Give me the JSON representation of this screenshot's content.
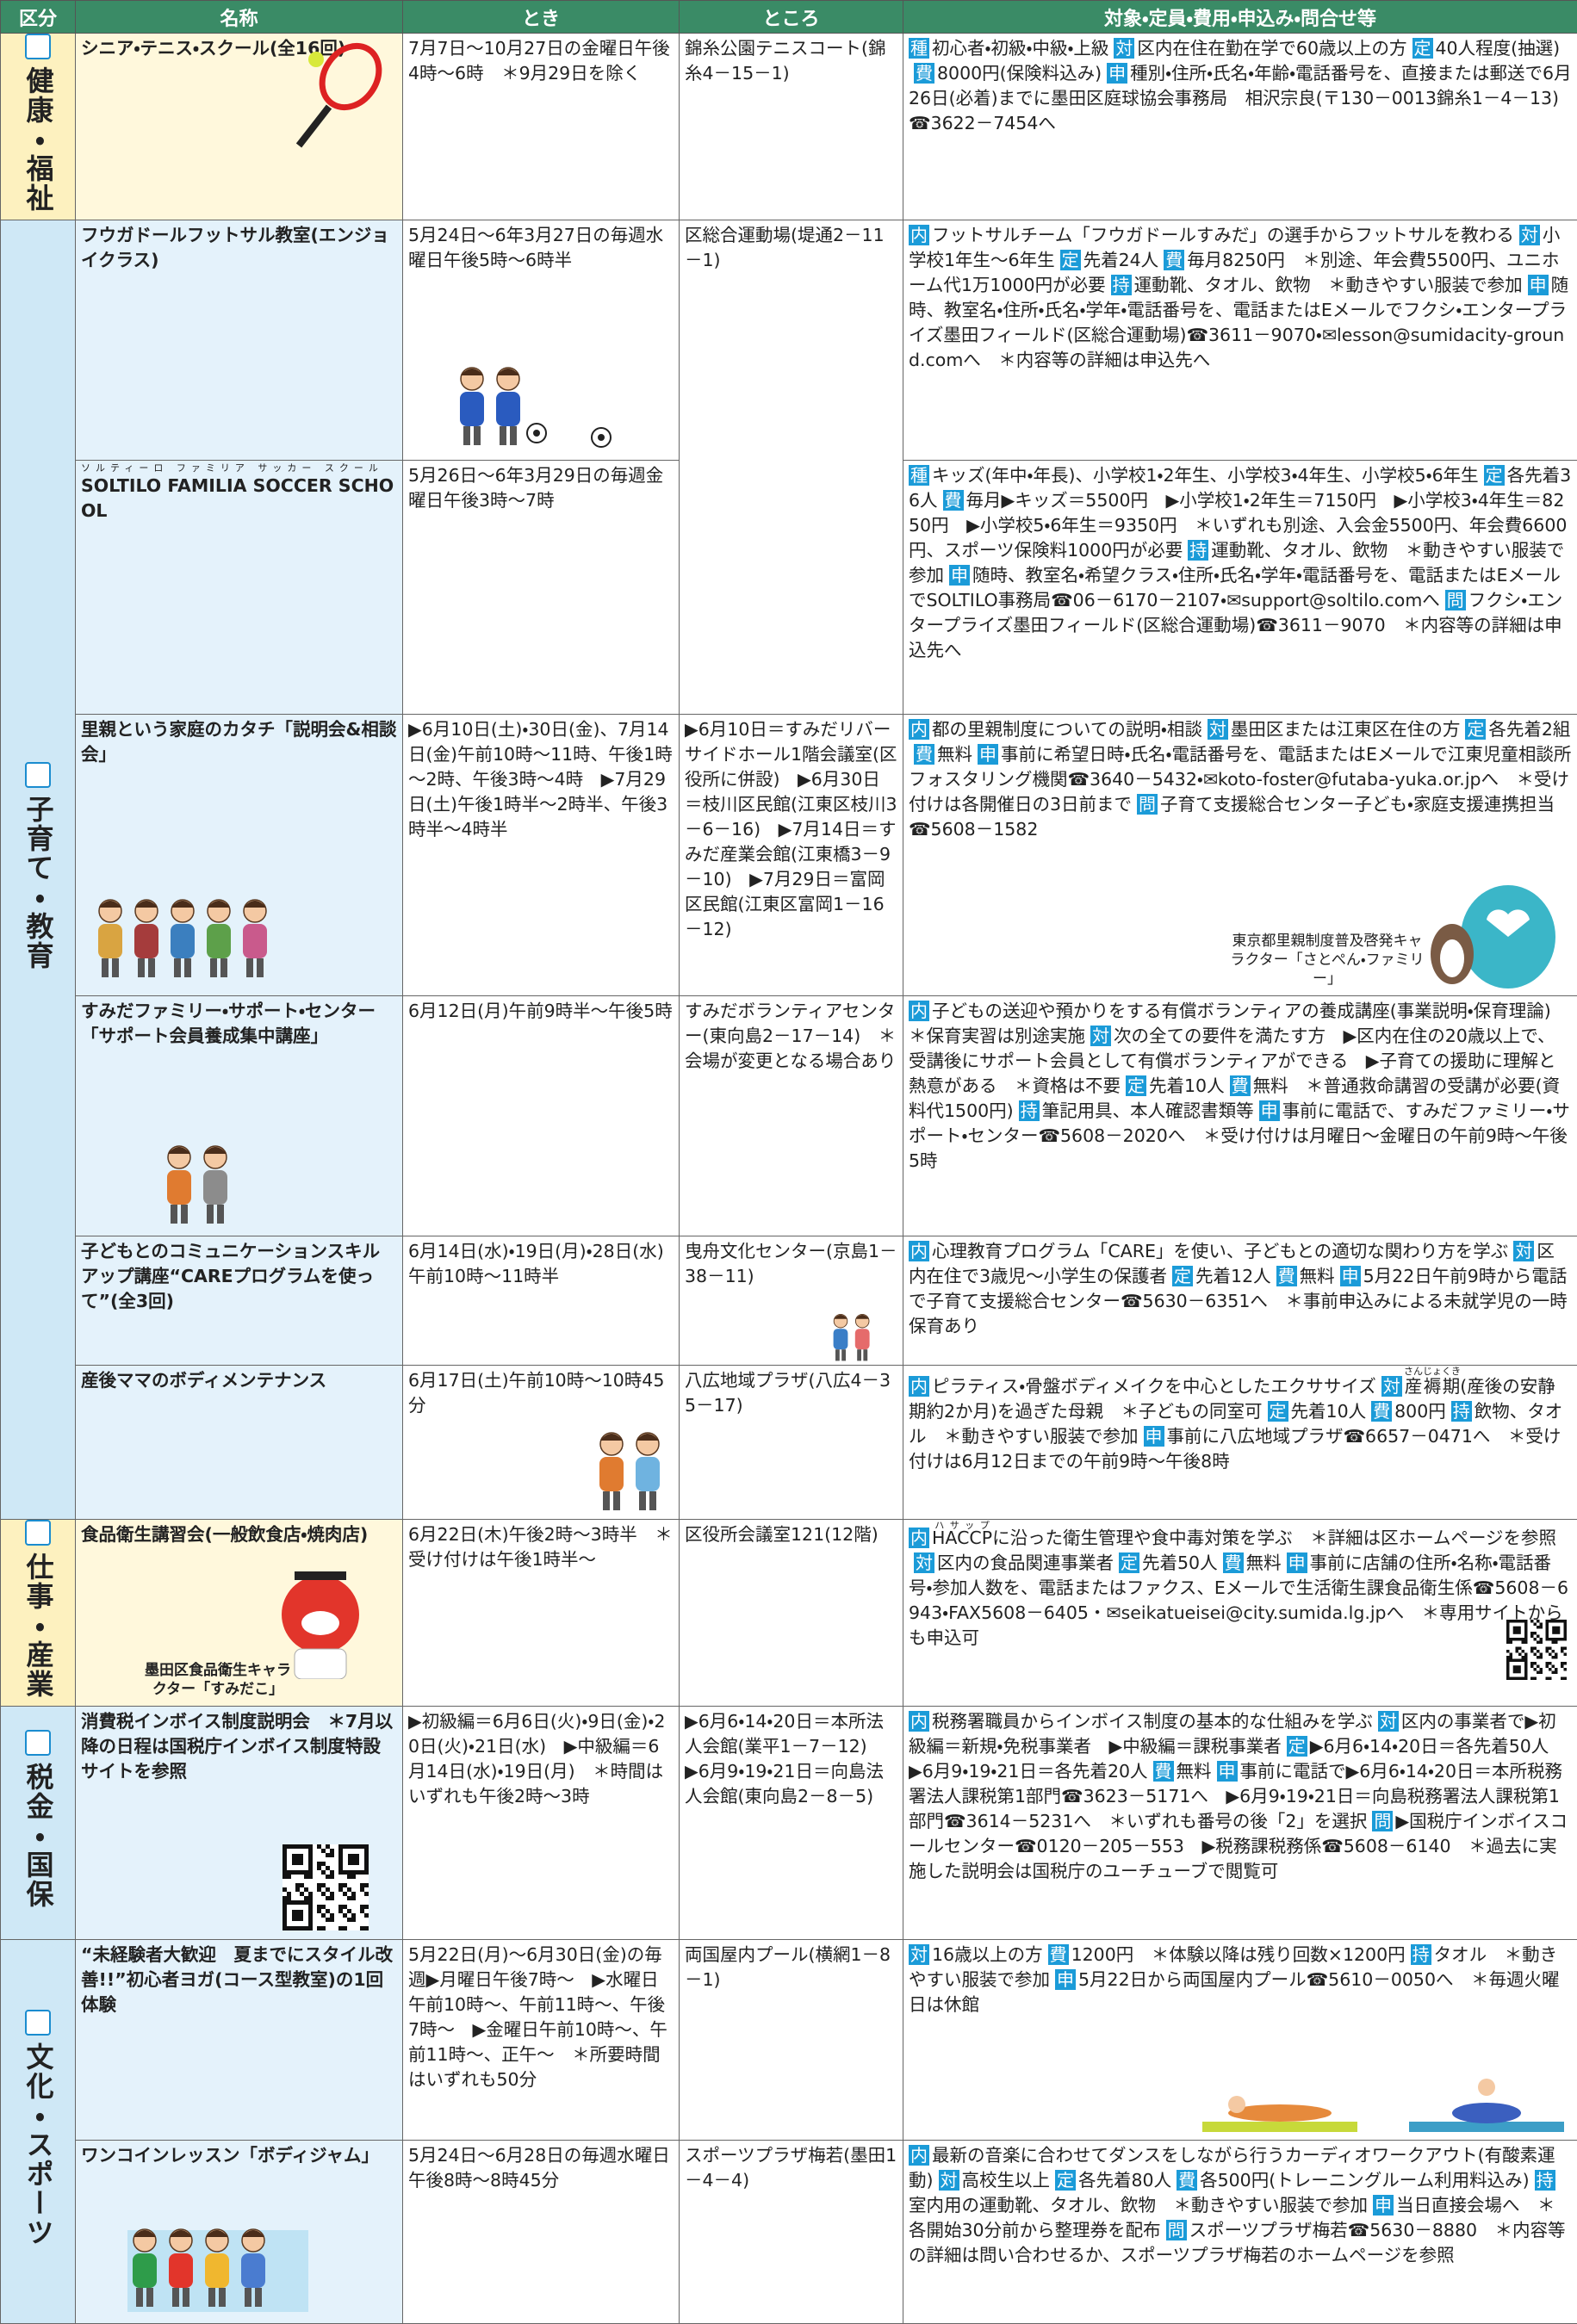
{
  "header": [
    "区分",
    "名称",
    "とき",
    "ところ",
    "対象・定員・費用・申込み・問合せ等"
  ],
  "sections": [
    {
      "category": "健康・福祉",
      "rows": [
        {
          "name": "シニア・テニス・スクール(全16回)",
          "when": "7月7日～10月27日の金曜日午後4時～6時　＊9月29日を除く",
          "where": "錦糸公園テニスコート(錦糸4－15－1)",
          "details": [
            {
              "label": "種",
              "text": "初心者・初級・中級・上級"
            },
            {
              "label": "対",
              "text": "区内在住在勤在学で60歳以上の方"
            },
            {
              "label": "定",
              "text": "40人程度(抽選)"
            },
            {
              "label": "費",
              "text": "8000円(保険料込み)"
            },
            {
              "label": "申",
              "text": "種別・住所・氏名・年齢・電話番号を、直接または郵送で6月26日(必着)までに墨田区庭球協会事務局　相沢宗良(〒130－0013錦糸1－4－13)☎3622－7454へ"
            }
          ]
        }
      ]
    },
    {
      "category": "子育て・教育",
      "rows": [
        {
          "name": "フウガドールフットサル教室(エンジョイクラス)",
          "when": "5月24日～6年3月27日の毎週水曜日午後5時～6時半",
          "where": "区総合運動場(堤通2－11－1)",
          "details": [
            {
              "label": "内",
              "text": "フットサルチーム「フウガドールすみだ」の選手からフットサルを教わる"
            },
            {
              "label": "対",
              "text": "小学校1年生～6年生"
            },
            {
              "label": "定",
              "text": "先着24人"
            },
            {
              "label": "費",
              "text": "毎月8250円　＊別途、年会費5500円、ユニホーム代1万1000円が必要"
            },
            {
              "label": "持",
              "text": "運動靴、タオル、飲物　＊動きやすい服装で参加"
            },
            {
              "label": "申",
              "text": "随時、教室名・住所・氏名・学年・電話番号を、電話またはEメールでフクシ・エンタープライズ墨田フィールド(区総合運動場)☎3611－9070・✉lesson@sumidacity-ground.comへ　＊内容等の詳細は申込先へ"
            }
          ]
        },
        {
          "name_ruby": "ソルティーロ ファミリア サッカー スクール",
          "name": "SOLTILO FAMILIA SOCCER SCHOOL",
          "when": "5月26日～6年3月29日の毎週金曜日午後3時～7時",
          "details": [
            {
              "label": "種",
              "text": "キッズ(年中・年長)、小学校1・2年生、小学校3・4年生、小学校5・6年生"
            },
            {
              "label": "定",
              "text": "各先着36人"
            },
            {
              "label": "費",
              "text": "毎月▶キッズ＝5500円　▶小学校1・2年生＝7150円　▶小学校3・4年生＝8250円　▶小学校5・6年生＝9350円　＊いずれも別途、入会金5500円、年会費6600円、スポーツ保険料1000円が必要"
            },
            {
              "label": "持",
              "text": "運動靴、タオル、飲物　＊動きやすい服装で参加"
            },
            {
              "label": "申",
              "text": "随時、教室名・希望クラス・住所・氏名・学年・電話番号を、電話またはEメールでSOLTILO事務局☎06－6170－2107・✉support@soltilo.comへ"
            },
            {
              "label": "問",
              "text": "フクシ・エンタープライズ墨田フィールド(区総合運動場)☎3611－9070　＊内容等の詳細は申込先へ"
            }
          ]
        },
        {
          "name": "里親という家庭のカタチ「説明会&相談会」",
          "when": "▶6月10日(土)・30日(金)、7月14日(金)午前10時～11時、午後1時～2時、午後3時～4時　▶7月29日(土)午後1時半～2時半、午後3時半～4時半",
          "where": "▶6月10日＝すみだリバーサイドホール1階会議室(区役所に併設)　▶6月30日＝枝川区民館(江東区枝川3－6－16)　▶7月14日＝すみだ産業会館(江東橋3－9－10)　▶7月29日＝富岡区民館(江東区富岡1－16－12)",
          "details": [
            {
              "label": "内",
              "text": "都の里親制度についての説明・相談"
            },
            {
              "label": "対",
              "text": "墨田区または江東区在住の方"
            },
            {
              "label": "定",
              "text": "各先着2組"
            },
            {
              "label": "費",
              "text": "無料"
            },
            {
              "label": "申",
              "text": "事前に希望日時・氏名・電話番号を、電話またはEメールで江東児童相談所フォスタリング機関☎3640－5432・✉koto-foster@futaba-yuka.or.jpへ　＊受け付けは各開催日の3日前まで"
            },
            {
              "label": "問",
              "text": "子育て支援総合センター子ども・家庭支援連携担当☎5608－1582"
            }
          ],
          "caption": "東京都里親制度普及啓発キャラクター「さとぺん・ファミリー」"
        },
        {
          "name": "すみだファミリー・サポート・センター「サポート会員養成集中講座」",
          "when": "6月12日(月)午前9時半～午後5時",
          "where": "すみだボランティアセンター(東向島2－17－14)　＊会場が変更となる場合あり",
          "details": [
            {
              "label": "内",
              "text": "子どもの送迎や預かりをする有償ボランティアの養成講座(事業説明・保育理論)　＊保育実習は別途実施"
            },
            {
              "label": "対",
              "text": "次の全ての要件を満たす方　▶区内在住の20歳以上で、受講後にサポート会員として有償ボランティアができる　▶子育ての援助に理解と熱意がある　＊資格は不要"
            },
            {
              "label": "定",
              "text": "先着10人"
            },
            {
              "label": "費",
              "text": "無料　＊普通救命講習の受講が必要(資料代1500円)"
            },
            {
              "label": "持",
              "text": "筆記用具、本人確認書類等"
            },
            {
              "label": "申",
              "text": "事前に電話で、すみだファミリー・サポート・センター☎5608－2020へ　＊受け付けは月曜日～金曜日の午前9時～午後5時"
            }
          ]
        },
        {
          "name": "子どもとのコミュニケーションスキルアップ講座“CAREプログラムを使って”(全3回)",
          "when": "6月14日(水)・19日(月)・28日(水)午前10時～11時半",
          "where": "曳舟文化センター(京島1－38－11)",
          "details": [
            {
              "label": "内",
              "text": "心理教育プログラム「CARE」を使い、子どもとの適切な関わり方を学ぶ"
            },
            {
              "label": "対",
              "text": "区内在住で3歳児～小学生の保護者"
            },
            {
              "label": "定",
              "text": "先着12人"
            },
            {
              "label": "費",
              "text": "無料"
            },
            {
              "label": "申",
              "text": "5月22日午前9時から電話で子育て支援総合センター☎5630－6351へ　＊事前申込みによる未就学児の一時保育あり"
            }
          ]
        },
        {
          "name": "産後ママのボディメンテナンス",
          "when": "6月17日(土)午前10時～10時45分",
          "where": "八広地域プラザ(八広4－35－17)",
          "details": [
            {
              "label": "内",
              "text": "ピラティス・骨盤ボディメイクを中心としたエクササイズ"
            },
            {
              "label": "対",
              "text": [
                {
                  "rb": "産褥期",
                  "rt": "さんじょくき"
                },
                "(産後の安静期約2か月)を過ぎた母親　＊子どもの同室可"
              ]
            },
            {
              "label": "定",
              "text": "先着10人"
            },
            {
              "label": "費",
              "text": "800円"
            },
            {
              "label": "持",
              "text": "飲物、タオル　＊動きやすい服装で参加"
            },
            {
              "label": "申",
              "text": "事前に八広地域プラザ☎6657－0471へ　＊受け付けは6月12日までの午前9時～午後8時"
            }
          ]
        }
      ]
    },
    {
      "category": "仕事・産業",
      "rows": [
        {
          "name": "食品衛生講習会(一般飲食店・焼肉店)",
          "when": "6月22日(木)午後2時～3時半　＊受け付けは午後1時半～",
          "where": "区役所会議室121(12階)",
          "details": [
            {
              "label": "内",
              "text": [
                {
                  "rb": "HACCP",
                  "rt": "ハサップ"
                },
                "に沿った衛生管理や食中毒対策を学ぶ　＊詳細は区ホームページを参照"
              ]
            },
            {
              "label": "対",
              "text": "区内の食品関連事業者"
            },
            {
              "label": "定",
              "text": "先着50人"
            },
            {
              "label": "費",
              "text": "無料"
            },
            {
              "label": "申",
              "text": "事前に店舗の住所・名称・電話番号・参加人数を、電話またはファクス、Eメールで生活衛生課食品衛生係☎5608－6943・FAX5608－6405・✉seikatueisei@city.sumida.lg.jpへ　＊専用サイトからも申込可"
            }
          ],
          "caption": "墨田区食品衛生キャラクター「すみだこ」"
        }
      ]
    },
    {
      "category": "税金・国保",
      "rows": [
        {
          "name": "消費税インボイス制度説明会　＊7月以降の日程は国税庁インボイス制度特設サイトを参照",
          "when": "▶初級編＝6月6日(火)・9日(金)・20日(火)・21日(水)　▶中級編＝6月14日(水)・19日(月)　＊時間はいずれも午後2時～3時",
          "where": "▶6月6・14・20日＝本所法人会館(業平1－7－12)　▶6月9・19・21日＝向島法人会館(東向島2－8－5)",
          "details": [
            {
              "label": "内",
              "text": "税務署職員からインボイス制度の基本的な仕組みを学ぶ"
            },
            {
              "label": "対",
              "text": "区内の事業者で▶初級編＝新規・免税事業者　▶中級編＝課税事業者"
            },
            {
              "label": "定",
              "text": "▶6月6・14・20日＝各先着50人　▶6月9・19・21日＝各先着20人"
            },
            {
              "label": "費",
              "text": "無料"
            },
            {
              "label": "申",
              "text": "事前に電話で▶6月6・14・20日＝本所税務署法人課税第1部門☎3623－5171へ　▶6月9・19・21日＝向島税務署法人課税第1部門☎3614－5231へ　＊いずれも番号の後「2」を選択"
            },
            {
              "label": "問",
              "text": "▶国税庁インボイスコールセンター☎0120－205－553　▶税務課税務係☎5608－6140　＊過去に実施した説明会は国税庁のユーチューブで閲覧可"
            }
          ]
        }
      ]
    },
    {
      "category": "文化・スポーツ",
      "rows": [
        {
          "name": "“未経験者大歓迎　夏までにスタイル改善!!”初心者ヨガ(コース型教室)の1回体験",
          "when": "5月22日(月)～6月30日(金)の毎週▶月曜日午後7時～　▶水曜日午前10時～、午前11時～、午後7時～　▶金曜日午前10時～、午前11時～、正午～　＊所要時間はいずれも50分",
          "where": "両国屋内プール(横網1－8－1)",
          "details": [
            {
              "label": "対",
              "text": "16歳以上の方"
            },
            {
              "label": "費",
              "text": "1200円　＊体験以降は残り回数×1200円"
            },
            {
              "label": "持",
              "text": "タオル　＊動きやすい服装で参加"
            },
            {
              "label": "申",
              "text": "5月22日から両国屋内プール☎5610－0050へ　＊毎週火曜日は休館"
            }
          ]
        },
        {
          "name": "ワンコインレッスン「ボディジャム」",
          "when": "5月24日～6月28日の毎週水曜日午後8時～8時45分",
          "where": "スポーツプラザ梅若(墨田1－4－4)",
          "details": [
            {
              "label": "内",
              "text": "最新の音楽に合わせてダンスをしながら行うカーディオワークアウト(有酸素運動)"
            },
            {
              "label": "対",
              "text": "高校生以上"
            },
            {
              "label": "定",
              "text": "各先着80人"
            },
            {
              "label": "費",
              "text": "各500円(トレーニングルーム利用料込み)"
            },
            {
              "label": "持",
              "text": "室内用の運動靴、タオル、飲物　＊動きやすい服装で参加"
            },
            {
              "label": "申",
              "text": "当日直接会場へ　＊各開始30分前から整理券を配布"
            },
            {
              "label": "問",
              "text": "スポーツプラザ梅若☎5630－8880　＊内容等の詳細は問い合わせるか、スポーツプラザ梅若のホームページを参照"
            }
          ]
        }
      ]
    }
  ]
}
